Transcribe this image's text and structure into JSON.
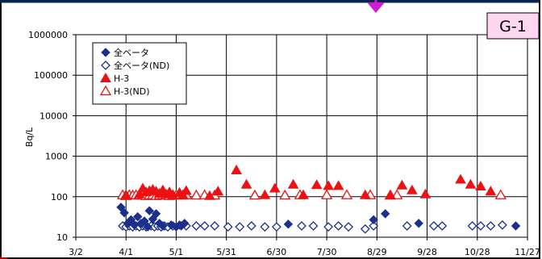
{
  "badge": {
    "label": "G-1",
    "background": "#ffd6f0"
  },
  "chart_data": {
    "type": "scatter",
    "title": "",
    "xlabel": "",
    "ylabel": "Bq/L",
    "yscale": "log",
    "ylim": [
      10,
      1000000
    ],
    "xlim": [
      0,
      270
    ],
    "x_ticks": [
      {
        "value": 0,
        "label": "3/2"
      },
      {
        "value": 30,
        "label": "4/1"
      },
      {
        "value": 60,
        "label": "5/1"
      },
      {
        "value": 90,
        "label": "5/31"
      },
      {
        "value": 120,
        "label": "6/30"
      },
      {
        "value": 150,
        "label": "7/30"
      },
      {
        "value": 180,
        "label": "8/29"
      },
      {
        "value": 210,
        "label": "9/28"
      },
      {
        "value": 240,
        "label": "10/28"
      },
      {
        "value": 270,
        "label": "11/27"
      }
    ],
    "y_ticks": [
      {
        "value": 10,
        "label": "10"
      },
      {
        "value": 100,
        "label": "100"
      },
      {
        "value": 1000,
        "label": "1000"
      },
      {
        "value": 10000,
        "label": "10000"
      },
      {
        "value": 100000,
        "label": "100000"
      },
      {
        "value": 1000000,
        "label": "1000000"
      }
    ],
    "grid": true,
    "legend_position": "top-left",
    "series": [
      {
        "name": "全ベータ",
        "marker": "diamond-filled",
        "color": "#1c2f8c",
        "points": [
          [
            27,
            55
          ],
          [
            29,
            40
          ],
          [
            31,
            22
          ],
          [
            33,
            27
          ],
          [
            35,
            20
          ],
          [
            37,
            32
          ],
          [
            39,
            22
          ],
          [
            41,
            25
          ],
          [
            43,
            18
          ],
          [
            44,
            45
          ],
          [
            46,
            28
          ],
          [
            48,
            38
          ],
          [
            50,
            22
          ],
          [
            52,
            19
          ],
          [
            57,
            20
          ],
          [
            60,
            18
          ],
          [
            62,
            20
          ],
          [
            63,
            19
          ],
          [
            65,
            22
          ],
          [
            127,
            21
          ],
          [
            178,
            27
          ],
          [
            185,
            38
          ],
          [
            205,
            22
          ],
          [
            263,
            19
          ]
        ]
      },
      {
        "name": "全ベータ(ND)",
        "marker": "diamond-open",
        "color": "#1c2f8c",
        "points": [
          [
            28,
            19
          ],
          [
            30,
            18
          ],
          [
            32,
            19
          ],
          [
            34,
            18
          ],
          [
            36,
            19
          ],
          [
            38,
            18
          ],
          [
            40,
            19
          ],
          [
            42,
            18
          ],
          [
            45,
            19
          ],
          [
            47,
            18
          ],
          [
            49,
            19
          ],
          [
            51,
            18
          ],
          [
            53,
            19
          ],
          [
            55,
            18
          ],
          [
            58,
            19
          ],
          [
            66,
            19
          ],
          [
            72,
            19
          ],
          [
            77,
            19
          ],
          [
            83,
            19
          ],
          [
            91,
            18
          ],
          [
            98,
            18
          ],
          [
            105,
            19
          ],
          [
            113,
            18
          ],
          [
            120,
            18
          ],
          [
            135,
            19
          ],
          [
            142,
            19
          ],
          [
            151,
            18
          ],
          [
            157,
            19
          ],
          [
            163,
            18
          ],
          [
            173,
            16
          ],
          [
            178,
            19
          ],
          [
            198,
            19
          ],
          [
            214,
            19
          ],
          [
            219,
            19
          ],
          [
            237,
            19
          ],
          [
            242,
            19
          ],
          [
            248,
            19
          ],
          [
            255,
            20
          ]
        ]
      },
      {
        "name": "H-3",
        "marker": "triangle-filled",
        "color": "#ee1111",
        "points": [
          [
            30,
            110
          ],
          [
            38,
            115
          ],
          [
            40,
            160
          ],
          [
            42,
            130
          ],
          [
            44,
            140
          ],
          [
            46,
            150
          ],
          [
            48,
            135
          ],
          [
            50,
            120
          ],
          [
            52,
            145
          ],
          [
            54,
            115
          ],
          [
            56,
            130
          ],
          [
            58,
            110
          ],
          [
            62,
            125
          ],
          [
            64,
            110
          ],
          [
            66,
            140
          ],
          [
            80,
            105
          ],
          [
            85,
            135
          ],
          [
            96,
            450
          ],
          [
            102,
            200
          ],
          [
            113,
            110
          ],
          [
            119,
            160
          ],
          [
            130,
            200
          ],
          [
            136,
            110
          ],
          [
            144,
            195
          ],
          [
            151,
            185
          ],
          [
            157,
            185
          ],
          [
            173,
            110
          ],
          [
            188,
            110
          ],
          [
            195,
            190
          ],
          [
            201,
            145
          ],
          [
            209,
            115
          ],
          [
            230,
            265
          ],
          [
            236,
            200
          ],
          [
            242,
            180
          ],
          [
            248,
            135
          ]
        ]
      },
      {
        "name": "H-3(ND)",
        "marker": "triangle-open",
        "color": "#ee1111",
        "points": [
          [
            28,
            110
          ],
          [
            30,
            105
          ],
          [
            32,
            110
          ],
          [
            34,
            108
          ],
          [
            36,
            110
          ],
          [
            38,
            108
          ],
          [
            40,
            110
          ],
          [
            42,
            105
          ],
          [
            44,
            108
          ],
          [
            46,
            110
          ],
          [
            48,
            105
          ],
          [
            50,
            108
          ],
          [
            52,
            110
          ],
          [
            54,
            108
          ],
          [
            56,
            105
          ],
          [
            58,
            110
          ],
          [
            60,
            108
          ],
          [
            62,
            110
          ],
          [
            64,
            108
          ],
          [
            66,
            110
          ],
          [
            72,
            108
          ],
          [
            77,
            110
          ],
          [
            83,
            108
          ],
          [
            107,
            108
          ],
          [
            125,
            108
          ],
          [
            134,
            110
          ],
          [
            150,
            110
          ],
          [
            162,
            110
          ],
          [
            176,
            110
          ],
          [
            188,
            108
          ],
          [
            192,
            110
          ],
          [
            254,
            110
          ]
        ]
      }
    ]
  }
}
